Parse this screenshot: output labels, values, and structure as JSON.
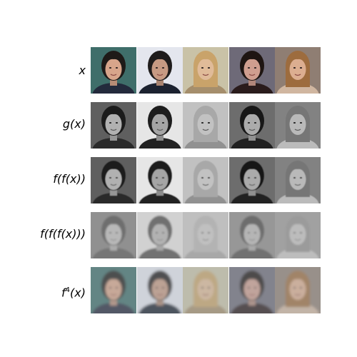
{
  "figure": {
    "rows": [
      {
        "label_parts": [
          "x"
        ],
        "style": "color",
        "blur": 0
      },
      {
        "label_parts": [
          "g(x)"
        ],
        "style": "gray",
        "blur": 0
      },
      {
        "label_parts": [
          "f(f(x))"
        ],
        "style": "gray",
        "blur": 0.6
      },
      {
        "label_parts": [
          "f(f(f(x)))"
        ],
        "style": "faded",
        "blur": 1.2
      },
      {
        "label_parts": [
          "f",
          "4",
          "(x)"
        ],
        "style": "faded",
        "blur": 1.8
      }
    ],
    "columns": [
      {
        "subject": "man-in-suit-portrait",
        "bg": "#3f6e6a",
        "skin": "#d7a58b",
        "hair": "#1e1a18",
        "clothes": "#232a3c"
      },
      {
        "subject": "smiling-young-man-portrait",
        "bg": "#e4e6ee",
        "skin": "#c79a83",
        "hair": "#1f1c1c",
        "clothes": "#1c2230"
      },
      {
        "subject": "blonde-woman-portrait",
        "bg": "#c9c2a7",
        "skin": "#e0bb99",
        "hair": "#c9a36a",
        "clothes": "#a58e6c"
      },
      {
        "subject": "curly-hair-woman-portrait",
        "bg": "#6e6a78",
        "skin": "#cf9e8f",
        "hair": "#1e1512",
        "clothes": "#2a1c1c"
      },
      {
        "subject": "woman-brown-hair-portrait",
        "bg": "#8f7e73",
        "skin": "#dcae90",
        "hair": "#9d6c3e",
        "clothes": "#d0b6a0"
      }
    ]
  }
}
